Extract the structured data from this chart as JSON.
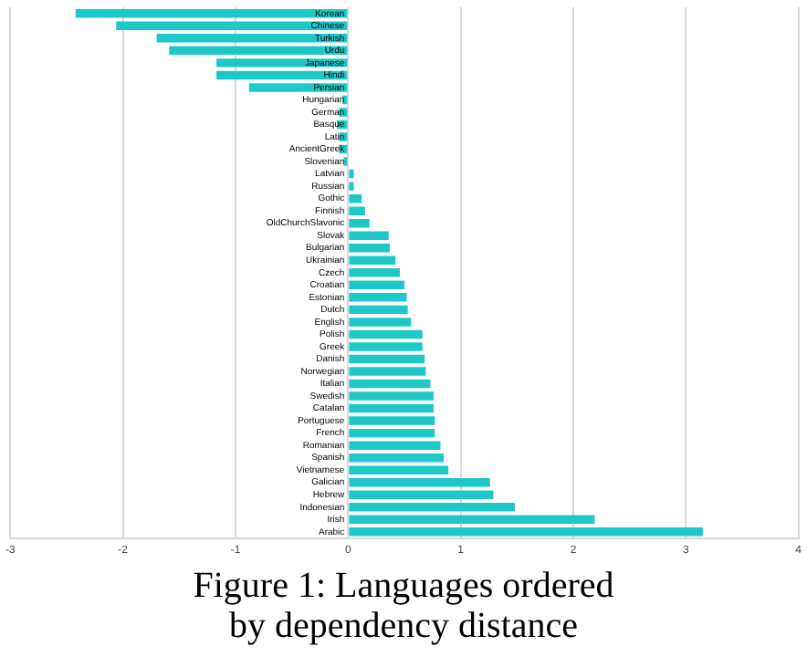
{
  "chart_data": {
    "type": "bar",
    "orientation": "horizontal",
    "title": "Figure 1: Languages ordered by dependency distance",
    "categories": [
      "Korean",
      "Chinese",
      "Turkish",
      "Urdu",
      "Japanese",
      "Hindi",
      "Persian",
      "Hungarian",
      "German",
      "Basque",
      "Latin",
      "AncientGreek",
      "Slovenian",
      "Latvian",
      "Russian",
      "Gothic",
      "Finnish",
      "OldChurchSlavonic",
      "Slovak",
      "Bulgarian",
      "Ukrainian",
      "Czech",
      "Croatian",
      "Estonian",
      "Dutch",
      "English",
      "Polish",
      "Greek",
      "Danish",
      "Norwegian",
      "Italian",
      "Swedish",
      "Catalan",
      "Portuguese",
      "French",
      "Romanian",
      "Spanish",
      "Vietnamese",
      "Galician",
      "Hebrew",
      "Indonesian",
      "Irish",
      "Arabic"
    ],
    "values": [
      -2.42,
      -2.06,
      -1.7,
      -1.59,
      -1.17,
      -1.17,
      -0.88,
      -0.05,
      -0.08,
      -0.1,
      -0.08,
      -0.08,
      -0.04,
      0.05,
      0.05,
      0.12,
      0.15,
      0.19,
      0.36,
      0.37,
      0.42,
      0.46,
      0.5,
      0.52,
      0.53,
      0.56,
      0.66,
      0.66,
      0.68,
      0.69,
      0.73,
      0.76,
      0.76,
      0.77,
      0.77,
      0.82,
      0.85,
      0.89,
      1.26,
      1.29,
      1.48,
      2.19,
      3.15
    ],
    "color": "#1fc8c8",
    "xlim": [
      -3,
      4
    ],
    "xticks": [
      -3,
      -2,
      -1,
      0,
      1,
      2,
      3,
      4
    ],
    "grid": "x"
  }
}
